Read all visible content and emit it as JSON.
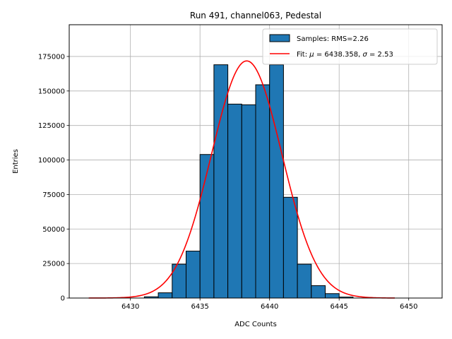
{
  "chart_data": {
    "type": "bar",
    "title": "Run 491, channel063, Pedestal",
    "xlabel": "ADC Counts",
    "ylabel": "Entries",
    "xlim": [
      6425.6,
      6452.4
    ],
    "ylim": [
      0,
      198000
    ],
    "xticks": [
      6430,
      6435,
      6440,
      6445,
      6450
    ],
    "yticks": [
      0,
      25000,
      50000,
      75000,
      100000,
      125000,
      150000,
      175000
    ],
    "grid": true,
    "legend_position": "top-right",
    "bins": {
      "edges": [
        6431,
        6432,
        6433,
        6434,
        6435,
        6436,
        6437,
        6438,
        6439,
        6440,
        6441,
        6442,
        6443,
        6444,
        6445,
        6446
      ],
      "counts": [
        900,
        3800,
        24500,
        34000,
        104000,
        169000,
        140500,
        140000,
        154500,
        169000,
        73000,
        24500,
        9000,
        3200,
        700
      ]
    },
    "fit": {
      "mu": 6438.358,
      "sigma": 2.53,
      "amplitude": 171800,
      "x_range": [
        6427,
        6449
      ]
    },
    "legend": [
      {
        "label": "Samples: RMS=2.26",
        "kind": "patch"
      },
      {
        "label": "Fit: $\\mu$ = 6438.358, $\\sigma$ = 2.53",
        "kind": "line"
      }
    ],
    "colors": {
      "bar_fill": "#1f77b4",
      "bar_edge": "#000000",
      "fit_line": "#ff0000",
      "grid": "#b0b0b0"
    }
  }
}
